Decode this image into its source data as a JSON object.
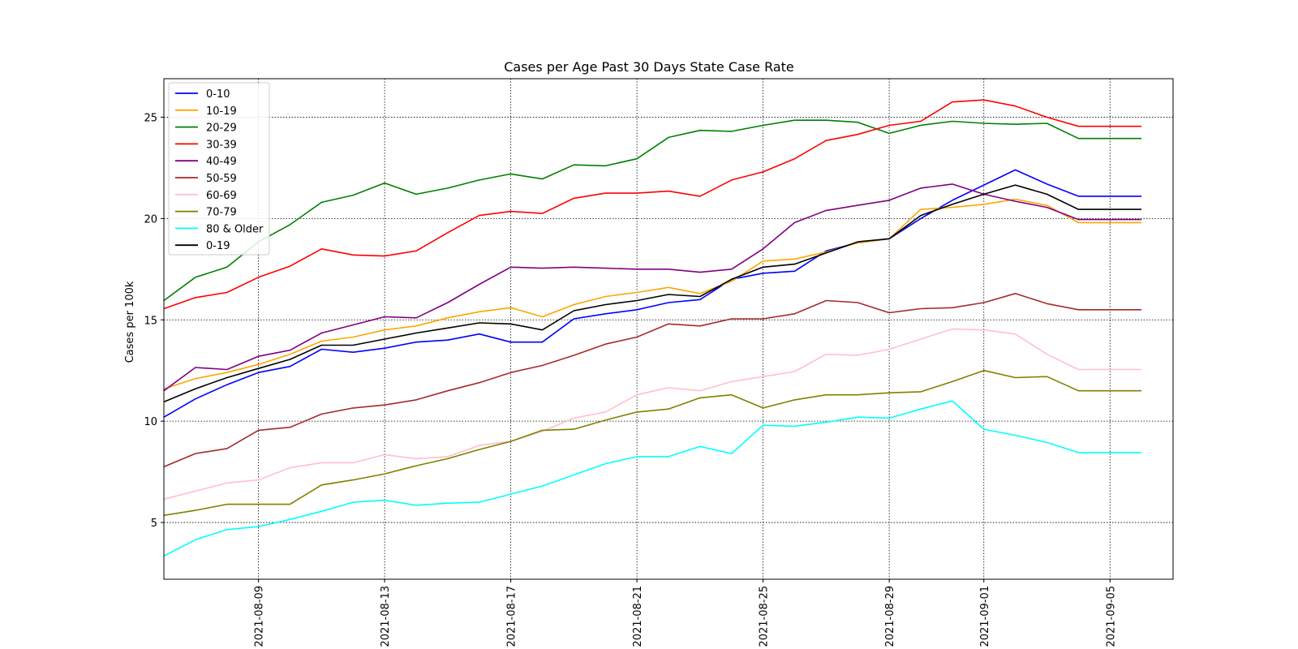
{
  "chart_data": {
    "type": "line",
    "title": "Cases per Age Past 30 Days  State Case Rate",
    "xlabel": "",
    "ylabel": "Cases per 100k",
    "x": [
      "2021-08-06",
      "2021-08-07",
      "2021-08-08",
      "2021-08-09",
      "2021-08-10",
      "2021-08-11",
      "2021-08-12",
      "2021-08-13",
      "2021-08-14",
      "2021-08-15",
      "2021-08-16",
      "2021-08-17",
      "2021-08-18",
      "2021-08-19",
      "2021-08-20",
      "2021-08-21",
      "2021-08-22",
      "2021-08-23",
      "2021-08-24",
      "2021-08-25",
      "2021-08-26",
      "2021-08-27",
      "2021-08-28",
      "2021-08-29",
      "2021-08-30",
      "2021-08-31",
      "2021-09-01",
      "2021-09-02",
      "2021-09-03",
      "2021-09-04",
      "2021-09-05",
      "2021-09-06"
    ],
    "x_ticks": [
      "2021-08-09",
      "2021-08-13",
      "2021-08-17",
      "2021-08-21",
      "2021-08-25",
      "2021-08-29",
      "2021-09-01",
      "2021-09-05"
    ],
    "x_range": [
      "2021-08-06",
      "2021-09-07"
    ],
    "y_ticks": [
      5,
      10,
      15,
      20,
      25
    ],
    "ylim": [
      2.2,
      26.9
    ],
    "grid": true,
    "legend_position": "top-left",
    "series": [
      {
        "name": "0-10",
        "color": "#0000ff",
        "values": [
          10.2,
          11.1,
          11.8,
          12.4,
          12.7,
          13.55,
          13.4,
          13.6,
          13.9,
          14.0,
          14.3,
          13.9,
          13.9,
          15.05,
          15.3,
          15.5,
          15.85,
          16.0,
          17.0,
          17.3,
          17.4,
          18.4,
          18.8,
          19.0,
          20.0,
          20.9,
          21.65,
          22.4,
          21.7,
          21.1,
          21.1,
          21.1
        ]
      },
      {
        "name": "10-19",
        "color": "#ffa500",
        "values": [
          11.6,
          12.1,
          12.4,
          12.8,
          13.3,
          13.95,
          14.15,
          14.5,
          14.7,
          15.1,
          15.4,
          15.6,
          15.15,
          15.75,
          16.15,
          16.35,
          16.6,
          16.3,
          16.9,
          17.9,
          18.0,
          18.35,
          18.8,
          19.0,
          20.45,
          20.55,
          20.7,
          20.95,
          20.65,
          19.8,
          19.8,
          19.8
        ]
      },
      {
        "name": "20-29",
        "color": "#008000",
        "values": [
          15.95,
          17.1,
          17.6,
          18.85,
          19.7,
          20.8,
          21.15,
          21.75,
          21.2,
          21.5,
          21.9,
          22.2,
          21.95,
          22.65,
          22.6,
          22.95,
          24.0,
          24.35,
          24.3,
          24.6,
          24.85,
          24.85,
          24.75,
          24.2,
          24.6,
          24.8,
          24.7,
          24.65,
          24.7,
          23.95,
          23.95,
          23.95
        ]
      },
      {
        "name": "30-39",
        "color": "#ff0000",
        "values": [
          15.55,
          16.1,
          16.35,
          17.1,
          17.65,
          18.5,
          18.2,
          18.15,
          18.4,
          19.3,
          20.15,
          20.35,
          20.25,
          21.0,
          21.25,
          21.25,
          21.35,
          21.1,
          21.9,
          22.3,
          22.95,
          23.85,
          24.15,
          24.6,
          24.8,
          25.75,
          25.85,
          25.55,
          25.0,
          24.55,
          24.55,
          24.55
        ]
      },
      {
        "name": "40-49",
        "color": "#800080",
        "values": [
          11.5,
          12.65,
          12.55,
          13.2,
          13.5,
          14.35,
          14.75,
          15.15,
          15.1,
          15.85,
          16.75,
          17.6,
          17.55,
          17.6,
          17.55,
          17.5,
          17.5,
          17.35,
          17.5,
          18.5,
          19.8,
          20.4,
          20.65,
          20.9,
          21.5,
          21.7,
          21.2,
          20.85,
          20.55,
          19.95,
          19.95,
          19.95
        ]
      },
      {
        "name": "50-59",
        "color": "#a52a2a",
        "values": [
          7.75,
          8.4,
          8.65,
          9.55,
          9.7,
          10.35,
          10.65,
          10.8,
          11.05,
          11.5,
          11.9,
          12.4,
          12.75,
          13.25,
          13.8,
          14.15,
          14.8,
          14.7,
          15.05,
          15.05,
          15.3,
          15.95,
          15.85,
          15.35,
          15.55,
          15.6,
          15.85,
          16.3,
          15.8,
          15.5,
          15.5,
          15.5
        ]
      },
      {
        "name": "60-69",
        "color": "#ffc0cb",
        "values": [
          6.15,
          6.55,
          6.95,
          7.1,
          7.7,
          7.95,
          7.95,
          8.35,
          8.15,
          8.25,
          8.8,
          9.0,
          9.5,
          10.15,
          10.45,
          11.3,
          11.65,
          11.5,
          11.95,
          12.2,
          12.45,
          13.3,
          13.25,
          13.55,
          14.05,
          14.55,
          14.5,
          14.3,
          13.3,
          12.55,
          12.55,
          12.55
        ]
      },
      {
        "name": "70-79",
        "color": "#808000",
        "values": [
          5.35,
          5.6,
          5.9,
          5.9,
          5.9,
          6.85,
          7.1,
          7.4,
          7.8,
          8.15,
          8.6,
          9.0,
          9.55,
          9.6,
          10.05,
          10.45,
          10.6,
          11.15,
          11.3,
          10.65,
          11.05,
          11.3,
          11.3,
          11.4,
          11.45,
          11.95,
          12.5,
          12.15,
          12.2,
          11.5,
          11.5,
          11.5
        ]
      },
      {
        "name": "80 & Older",
        "color": "#00ffff",
        "values": [
          3.35,
          4.15,
          4.65,
          4.8,
          5.15,
          5.55,
          6.0,
          6.1,
          5.85,
          5.95,
          6.0,
          6.4,
          6.8,
          7.35,
          7.9,
          8.25,
          8.25,
          8.75,
          8.4,
          9.8,
          9.75,
          9.95,
          10.2,
          10.15,
          10.6,
          11.0,
          9.6,
          9.3,
          8.95,
          8.45,
          8.45,
          8.45
        ]
      },
      {
        "name": "0-19",
        "color": "#000000",
        "values": [
          10.95,
          11.6,
          12.15,
          12.6,
          13.05,
          13.75,
          13.75,
          14.05,
          14.35,
          14.6,
          14.85,
          14.8,
          14.5,
          15.45,
          15.75,
          15.95,
          16.25,
          16.15,
          17.0,
          17.6,
          17.75,
          18.3,
          18.85,
          19.0,
          20.15,
          20.7,
          21.2,
          21.65,
          21.2,
          20.45,
          20.45,
          20.45
        ]
      }
    ]
  }
}
